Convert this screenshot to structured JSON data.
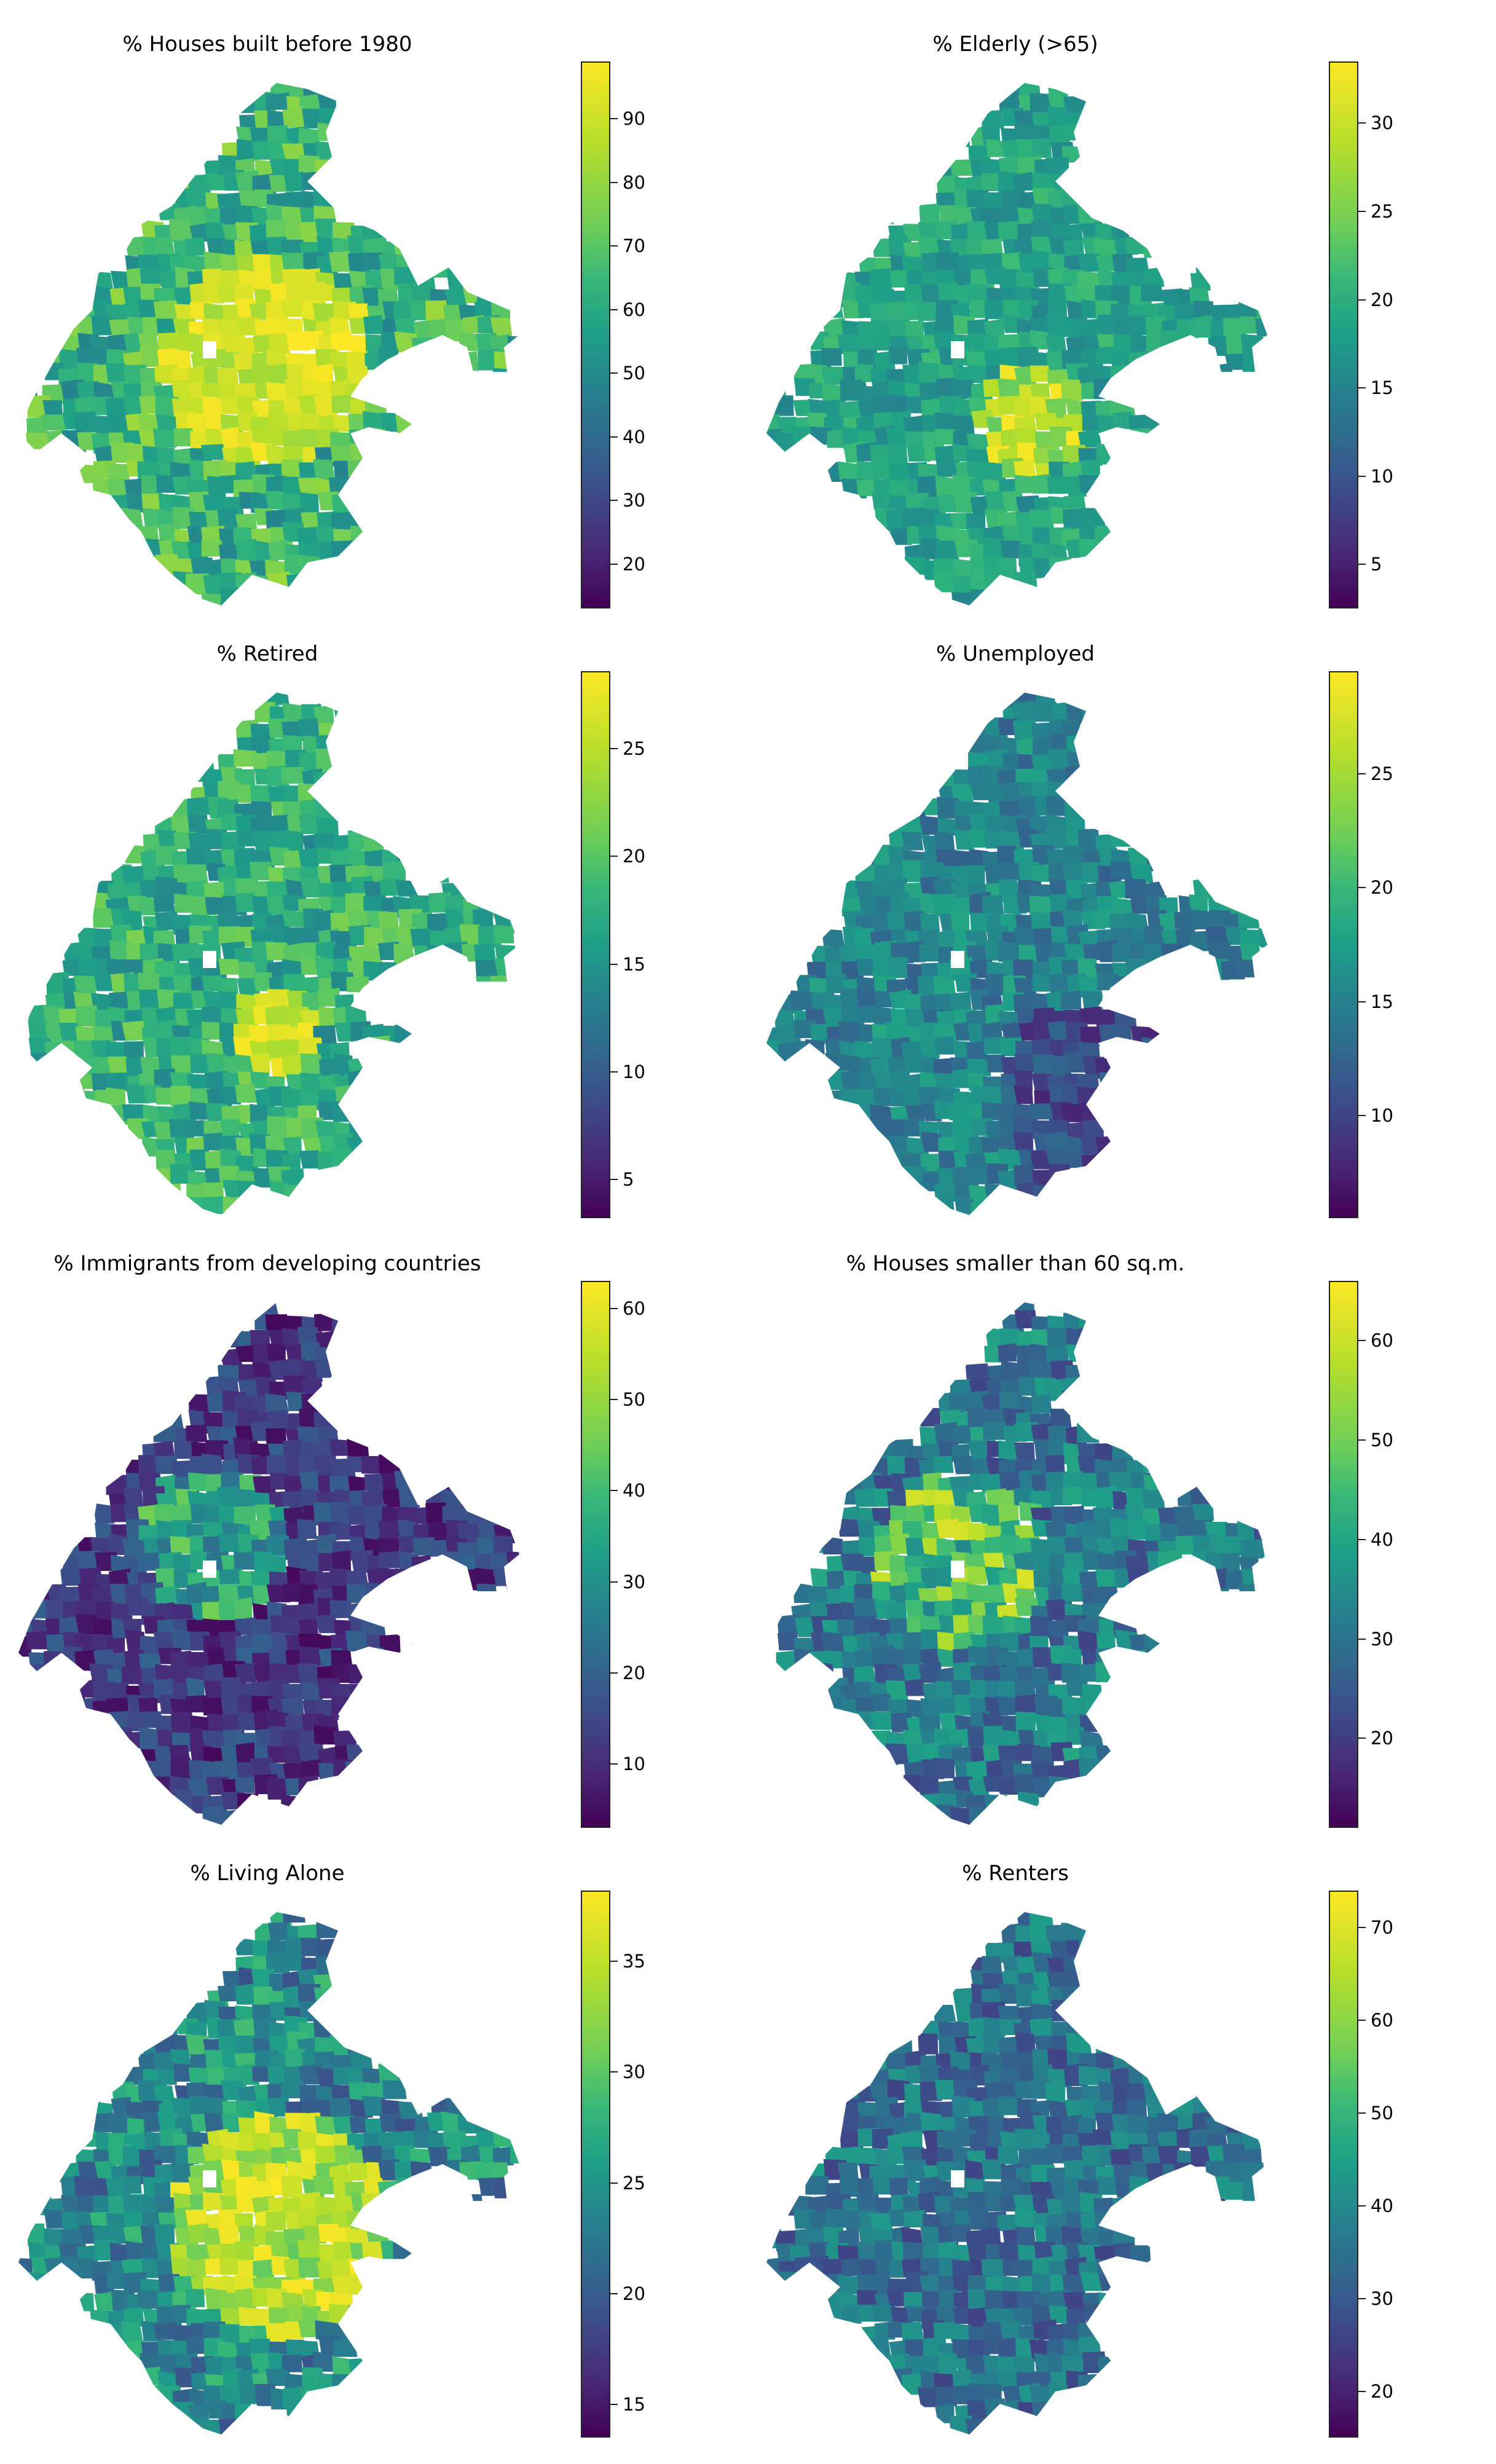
{
  "panels": [
    {
      "title": "% Houses built before 1980",
      "ticks": [
        "20",
        "30",
        "40",
        "50",
        "60",
        "70",
        "80",
        "90"
      ],
      "range": [
        13,
        99
      ],
      "tick_values": [
        20,
        30,
        40,
        50,
        60,
        70,
        80,
        90
      ]
    },
    {
      "title": "% Elderly (>65)",
      "ticks": [
        "5",
        "10",
        "15",
        "20",
        "25",
        "30"
      ],
      "range": [
        2.5,
        33.5
      ],
      "tick_values": [
        5,
        10,
        15,
        20,
        25,
        30
      ]
    },
    {
      "title": "% Retired",
      "ticks": [
        "5",
        "10",
        "15",
        "20",
        "25"
      ],
      "range": [
        3.2,
        28.6
      ],
      "tick_values": [
        5,
        10,
        15,
        20,
        25
      ]
    },
    {
      "title": "% Unemployed",
      "ticks": [
        "10",
        "15",
        "20",
        "25"
      ],
      "range": [
        5.5,
        29.5
      ],
      "tick_values": [
        10,
        15,
        20,
        25
      ]
    },
    {
      "title": "% Immigrants from developing countries",
      "ticks": [
        "10",
        "20",
        "30",
        "40",
        "50",
        "60"
      ],
      "range": [
        3,
        63
      ],
      "tick_values": [
        10,
        20,
        30,
        40,
        50,
        60
      ]
    },
    {
      "title": "% Houses smaller than 60 sq.m.",
      "ticks": [
        "20",
        "30",
        "40",
        "50",
        "60"
      ],
      "range": [
        11,
        66
      ],
      "tick_values": [
        20,
        30,
        40,
        50,
        60
      ]
    },
    {
      "title": "% Living Alone",
      "ticks": [
        "15",
        "20",
        "25",
        "30",
        "35"
      ],
      "range": [
        13.5,
        38.2
      ],
      "tick_values": [
        15,
        20,
        25,
        30,
        35
      ]
    },
    {
      "title": "% Renters",
      "ticks": [
        "20",
        "30",
        "40",
        "50",
        "60",
        "70"
      ],
      "range": [
        15,
        74
      ],
      "tick_values": [
        20,
        30,
        40,
        50,
        60,
        70
      ]
    }
  ],
  "colormap": [
    "#440154",
    "#482878",
    "#3e4989",
    "#31688e",
    "#26828e",
    "#1f9e89",
    "#35b779",
    "#6ece58",
    "#b5de2b",
    "#fde725"
  ]
}
